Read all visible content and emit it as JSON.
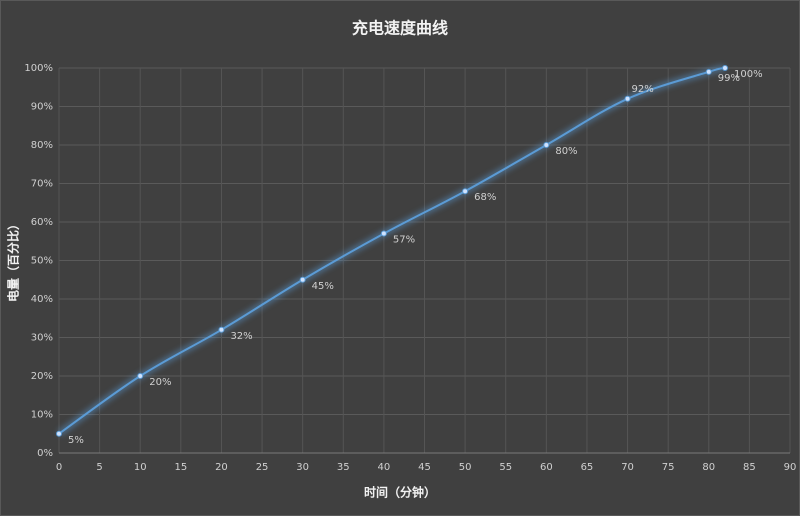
{
  "chart_data": {
    "type": "line",
    "title": "充电速度曲线",
    "x_label": "时间（分钟）",
    "y_label": "电量（百分比）",
    "x": [
      0,
      10,
      20,
      30,
      40,
      50,
      60,
      70,
      80,
      82
    ],
    "series": [
      {
        "name": "电量",
        "color": "#5b9bd5",
        "values": [
          5,
          20,
          32,
          45,
          57,
          68,
          80,
          92,
          99,
          100
        ],
        "value_labels": [
          "5%",
          "20%",
          "32%",
          "45%",
          "57%",
          "68%",
          "80%",
          "92%",
          "99%",
          "100%"
        ]
      }
    ],
    "xlim": [
      0,
      90
    ],
    "xticks": [
      0,
      5,
      10,
      15,
      20,
      25,
      30,
      35,
      40,
      45,
      50,
      55,
      60,
      65,
      70,
      75,
      80,
      85,
      90
    ],
    "ylim": [
      0,
      100
    ],
    "yticks": [
      {
        "value": 0,
        "label": "0%"
      },
      {
        "value": 10,
        "label": "10%"
      },
      {
        "value": 20,
        "label": "20%"
      },
      {
        "value": 30,
        "label": "30%"
      },
      {
        "value": 40,
        "label": "40%"
      },
      {
        "value": 50,
        "label": "50%"
      },
      {
        "value": 60,
        "label": "60%"
      },
      {
        "value": 70,
        "label": "70%"
      },
      {
        "value": 80,
        "label": "80%"
      },
      {
        "value": 90,
        "label": "90%"
      },
      {
        "value": 100,
        "label": "100%"
      }
    ],
    "grid": true
  }
}
